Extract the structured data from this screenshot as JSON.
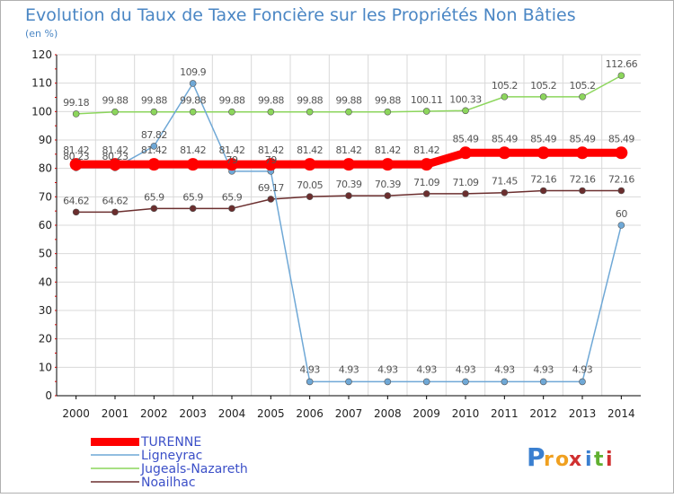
{
  "chart_data": {
    "type": "line",
    "title": "Evolution du Taux de Taxe Foncière sur les Propriétés Non Bâties",
    "ylabel": "(en %)",
    "xlabel": "",
    "ylim": [
      0,
      120
    ],
    "yticks": [
      0,
      10,
      20,
      30,
      40,
      50,
      60,
      70,
      80,
      90,
      100,
      110,
      120
    ],
    "categories": [
      "2000",
      "2001",
      "2002",
      "2003",
      "2004",
      "2005",
      "2006",
      "2007",
      "2008",
      "2009",
      "2010",
      "2011",
      "2012",
      "2013",
      "2014"
    ],
    "grid": true,
    "legend_position": "bottom-left",
    "series": [
      {
        "name": "TURENNE",
        "color": "#ff0000",
        "values": [
          81.42,
          81.42,
          81.42,
          81.42,
          81.42,
          81.42,
          81.42,
          81.42,
          81.42,
          81.42,
          85.49,
          85.49,
          85.49,
          85.49,
          85.49
        ],
        "labels": [
          "81.42",
          "81.42",
          "81.42",
          "81.42",
          "81.42",
          "81.42",
          "81.42",
          "81.42",
          "81.42",
          "81.42",
          "85.49",
          "85.49",
          "85.49",
          "85.49",
          "85.49"
        ]
      },
      {
        "name": "Ligneyrac",
        "color": "#6fa8d6",
        "values": [
          80.23,
          80.23,
          87.82,
          109.9,
          79,
          79,
          4.93,
          4.93,
          4.93,
          4.93,
          4.93,
          4.93,
          4.93,
          4.93,
          60
        ],
        "labels": [
          "80.23",
          "80.23",
          "87.82",
          "109.9",
          "79",
          "79",
          "4.93",
          "4.93",
          "4.93",
          "4.93",
          "4.93",
          "4.93",
          "4.93",
          "4.93",
          "60"
        ]
      },
      {
        "name": "Jugeals-Nazareth",
        "color": "#8cd65c",
        "values": [
          99.18,
          99.88,
          99.88,
          99.88,
          99.88,
          99.88,
          99.88,
          99.88,
          99.88,
          100.11,
          100.33,
          105.2,
          105.2,
          105.2,
          112.66
        ],
        "labels": [
          "99.18",
          "99.88",
          "99.88",
          "99.88",
          "99.88",
          "99.88",
          "99.88",
          "99.88",
          "99.88",
          "100.11",
          "100.33",
          "105.2",
          "105.2",
          "105.2",
          "112.66"
        ]
      },
      {
        "name": "Noailhac",
        "color": "#6b2e2e",
        "values": [
          64.62,
          64.62,
          65.9,
          65.9,
          65.9,
          69.17,
          70.05,
          70.39,
          70.39,
          71.09,
          71.09,
          71.45,
          72.16,
          72.16,
          72.16
        ],
        "labels": [
          "64.62",
          "64.62",
          "65.9",
          "65.9",
          "65.9",
          "69.17",
          "70.05",
          "70.39",
          "70.39",
          "71.09",
          "71.09",
          "71.45",
          "72.16",
          "72.16",
          "72.16"
        ]
      }
    ]
  },
  "legend_items": [
    "TURENNE",
    "Ligneyrac",
    "Jugeals-Nazareth",
    "Noailhac"
  ],
  "logo": {
    "text": "Proxiti",
    "letters": [
      "P",
      "r",
      "o",
      "x",
      "i",
      "t",
      "i"
    ]
  },
  "colors": {
    "title": "#4a86c4",
    "axis_text": "#222222",
    "grid": "#d9d9d9",
    "axis_line": "#000000",
    "legend_text": "#3c50c8"
  }
}
